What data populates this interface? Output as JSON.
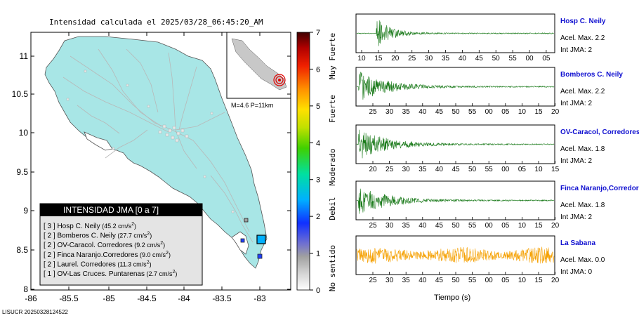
{
  "map": {
    "title": "Intensidad calculada el 2025/03/28_06:45:20_AM",
    "lat_ticks": [
      "11",
      "10.5",
      "10",
      "9.5",
      "9",
      "8.5",
      "8"
    ],
    "lon_ticks": [
      "-86",
      "-85.5",
      "-85",
      "-84.5",
      "-84",
      "-83.5",
      "-83"
    ],
    "inset_label": "M=4.6 P=11km",
    "legend_title": "INTENSIDAD JMA [0 a 7]",
    "legend_items": [
      {
        "level": "3",
        "station": "Hosp C. Neily",
        "pga": "45.2",
        "unit": "cm/s",
        "sup": "2"
      },
      {
        "level": "2",
        "station": "Bomberos C. Neily",
        "pga": "27.7",
        "unit": "cm/s",
        "sup": "2"
      },
      {
        "level": "2",
        "station": "OV-Caracol. Corredores",
        "pga": "9.2",
        "unit": "cm/s",
        "sup": "2"
      },
      {
        "level": "2",
        "station": "Finca Naranjo.Corredores",
        "pga": "9.0",
        "unit": "cm/s",
        "sup": "2"
      },
      {
        "level": "2",
        "station": "Laurel. Corredores",
        "pga": "11.3",
        "unit": "cm/s",
        "sup": "2"
      },
      {
        "level": "1",
        "station": "OV-Las Cruces. Puntarenas",
        "pga": "2.7",
        "unit": "cm/s",
        "sup": "2"
      }
    ],
    "footer": "LISUCR 20250328124522"
  },
  "colorbar": {
    "ticks": [
      "7",
      "6",
      "5",
      "4",
      "3",
      "2",
      "1",
      "0"
    ],
    "labels": [
      "Muy Fuerte",
      "Fuerte",
      "Moderado",
      "Debil",
      "No sentido"
    ]
  },
  "seismograms": {
    "xlabel": "Tiempo (s)",
    "panels": [
      {
        "station": "Hosp C. Neily",
        "accel": "Acel. Max. 2.2",
        "jma": "Int JMA: 2",
        "color": "#1a7a1a",
        "ticks": [
          "10",
          "15",
          "20",
          "25",
          "30",
          "35",
          "40",
          "45",
          "50",
          "55",
          "00",
          "05"
        ]
      },
      {
        "station": "Bomberos C. Neily",
        "accel": "Acel. Max. 2.2",
        "jma": "Int JMA: 2",
        "color": "#1a7a1a",
        "ticks": [
          "25",
          "30",
          "35",
          "40",
          "45",
          "50",
          "55",
          "00",
          "05",
          "10",
          "15",
          "20"
        ]
      },
      {
        "station": "OV-Caracol, Corredores",
        "accel": "Acel. Max. 1.8",
        "jma": "Int JMA: 2",
        "color": "#1a7a1a",
        "ticks": [
          "20",
          "25",
          "30",
          "35",
          "40",
          "45",
          "50",
          "55",
          "00",
          "05",
          "10",
          "15"
        ]
      },
      {
        "station": "Finca Naranjo,Corredores",
        "accel": "Acel. Max. 1.8",
        "jma": "Int JMA: 2",
        "color": "#1a7a1a",
        "ticks": [
          "25",
          "30",
          "35",
          "40",
          "45",
          "50",
          "55",
          "00",
          "05",
          "10",
          "15",
          "20"
        ]
      },
      {
        "station": "La Sabana",
        "accel": "Acel. Max. 0.0",
        "jma": "Int JMA: 0",
        "color": "#f5a000",
        "ticks": [
          "25",
          "30",
          "35",
          "40",
          "45",
          "50",
          "55",
          "00",
          "05",
          "10",
          "15",
          "20"
        ]
      }
    ]
  },
  "chart_data": [
    {
      "type": "scatter",
      "title": "Intensidad calculada el 2025/03/28_06:45:20_AM",
      "xlim": [
        -86,
        -82.6
      ],
      "ylim": [
        8,
        11.3
      ],
      "legend": "bottom-left",
      "epicenter": {
        "lon": -82.95,
        "lat": 8.62,
        "label": "M=4.6 P=11km"
      },
      "stations": [
        {
          "name": "Hosp C. Neily",
          "intensity": 3,
          "pga_cms2": 45.2
        },
        {
          "name": "Bomberos C. Neily",
          "intensity": 2,
          "pga_cms2": 27.7
        },
        {
          "name": "OV-Caracol. Corredores",
          "intensity": 2,
          "pga_cms2": 9.2
        },
        {
          "name": "Finca Naranjo.Corredores",
          "intensity": 2,
          "pga_cms2": 9.0
        },
        {
          "name": "Laurel. Corredores",
          "intensity": 2,
          "pga_cms2": 11.3
        },
        {
          "name": "OV-Las Cruces. Puntarenas",
          "intensity": 1,
          "pga_cms2": 2.7
        }
      ],
      "colorbar_range": [
        0,
        7
      ]
    },
    {
      "type": "line",
      "xlabel": "Tiempo (s)",
      "series": [
        {
          "name": "Hosp C. Neily",
          "acel_max": 2.2,
          "int_jma": 2
        },
        {
          "name": "Bomberos C. Neily",
          "acel_max": 2.2,
          "int_jma": 2
        },
        {
          "name": "OV-Caracol, Corredores",
          "acel_max": 1.8,
          "int_jma": 2
        },
        {
          "name": "Finca Naranjo,Corredores",
          "acel_max": 1.8,
          "int_jma": 2
        },
        {
          "name": "La Sabana",
          "acel_max": 0.0,
          "int_jma": 0
        }
      ]
    }
  ]
}
